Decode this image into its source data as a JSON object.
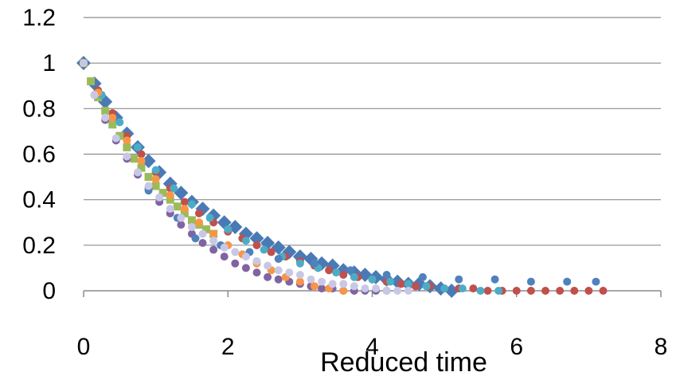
{
  "chart_data": {
    "type": "scatter",
    "title": "",
    "xlabel": "Reduced time",
    "ylabel": "",
    "xlim": [
      0,
      8
    ],
    "ylim": [
      0,
      1.2
    ],
    "xticks": [
      "0",
      "2",
      "4",
      "6",
      "8"
    ],
    "yticks": [
      "0",
      "0.2",
      "0.4",
      "0.6",
      "0.8",
      "1",
      "1.2"
    ],
    "grid": "horizontal",
    "legend": "none",
    "series": [
      {
        "color": "#4a7ab5",
        "marker": "diamond",
        "x": [
          0,
          0.15,
          0.3,
          0.45,
          0.6,
          0.75,
          0.9,
          1.05,
          1.2,
          1.35,
          1.5,
          1.65,
          1.8,
          1.95,
          2.1,
          2.25,
          2.4,
          2.55,
          2.7,
          2.85,
          3.0,
          3.15,
          3.3,
          3.45,
          3.6,
          3.75,
          3.9,
          4.05,
          4.2,
          4.35,
          4.5,
          4.65,
          4.8,
          4.95,
          5.1
        ],
        "y": [
          1.0,
          0.91,
          0.83,
          0.76,
          0.69,
          0.63,
          0.57,
          0.52,
          0.47,
          0.43,
          0.39,
          0.36,
          0.33,
          0.3,
          0.28,
          0.25,
          0.23,
          0.21,
          0.19,
          0.17,
          0.15,
          0.14,
          0.12,
          0.11,
          0.09,
          0.08,
          0.07,
          0.06,
          0.05,
          0.04,
          0.03,
          0.03,
          0.02,
          0.01,
          0.0
        ]
      },
      {
        "color": "#c0504d",
        "marker": "circle",
        "x": [
          0,
          0.2,
          0.4,
          0.6,
          0.8,
          1.0,
          1.2,
          1.4,
          1.6,
          1.8,
          2.0,
          2.2,
          2.4,
          2.6,
          2.8,
          3.0,
          3.2,
          3.4,
          3.6,
          3.8,
          4.0,
          4.2,
          4.4,
          4.6,
          4.8,
          5.0,
          5.2,
          5.4,
          5.6,
          5.8,
          6.0,
          6.2,
          6.4,
          6.6,
          6.8,
          7.0,
          7.2
        ],
        "y": [
          1.0,
          0.88,
          0.78,
          0.68,
          0.6,
          0.52,
          0.45,
          0.39,
          0.34,
          0.3,
          0.26,
          0.23,
          0.2,
          0.17,
          0.15,
          0.13,
          0.11,
          0.09,
          0.07,
          0.06,
          0.05,
          0.04,
          0.03,
          0.02,
          0.02,
          0.01,
          0.01,
          0.01,
          0.0,
          0.0,
          0.0,
          0.0,
          0.0,
          0.0,
          0.0,
          0.0,
          0.0
        ]
      },
      {
        "color": "#9bbb59",
        "marker": "square",
        "x": [
          0,
          0.1,
          0.2,
          0.3,
          0.4,
          0.5,
          0.6,
          0.7,
          0.8,
          0.9,
          1.0,
          1.1,
          1.2,
          1.3,
          1.4,
          1.5,
          1.6,
          1.7,
          1.8
        ],
        "y": [
          1.0,
          0.92,
          0.85,
          0.79,
          0.73,
          0.68,
          0.63,
          0.58,
          0.54,
          0.5,
          0.46,
          0.43,
          0.4,
          0.37,
          0.34,
          0.31,
          0.29,
          0.27,
          0.25
        ]
      },
      {
        "color": "#8064a2",
        "marker": "circle",
        "x": [
          0,
          0.15,
          0.3,
          0.45,
          0.6,
          0.75,
          0.9,
          1.05,
          1.2,
          1.35,
          1.5,
          1.65,
          1.8,
          1.95,
          2.1,
          2.25,
          2.4,
          2.55,
          2.7,
          2.85,
          3.0,
          3.15,
          3.3,
          3.45,
          3.6,
          3.75,
          3.9,
          4.05,
          4.2
        ],
        "y": [
          1.0,
          0.86,
          0.75,
          0.66,
          0.58,
          0.51,
          0.45,
          0.39,
          0.34,
          0.29,
          0.25,
          0.21,
          0.18,
          0.15,
          0.12,
          0.1,
          0.08,
          0.06,
          0.05,
          0.04,
          0.03,
          0.02,
          0.01,
          0.01,
          0.0,
          0.0,
          0.0,
          0.0,
          0.0
        ]
      },
      {
        "color": "#4bacc6",
        "marker": "circle",
        "x": [
          0,
          0.25,
          0.5,
          0.75,
          1.0,
          1.25,
          1.5,
          1.75,
          2.0,
          2.25,
          2.5,
          2.75,
          3.0,
          3.25,
          3.5,
          3.75,
          4.0,
          4.25,
          4.5,
          4.75,
          5.0,
          5.25,
          5.5,
          5.75
        ],
        "y": [
          1.0,
          0.86,
          0.74,
          0.63,
          0.53,
          0.45,
          0.38,
          0.32,
          0.27,
          0.22,
          0.18,
          0.15,
          0.12,
          0.1,
          0.08,
          0.06,
          0.05,
          0.04,
          0.03,
          0.02,
          0.01,
          0.01,
          0.0,
          0.0
        ]
      },
      {
        "color": "#f79646",
        "marker": "circle",
        "x": [
          0,
          0.2,
          0.4,
          0.6,
          0.8,
          1.0,
          1.2,
          1.4,
          1.6,
          1.8,
          2.0,
          2.2,
          2.4,
          2.6,
          2.8,
          3.0,
          3.2,
          3.4,
          3.6
        ],
        "y": [
          1.0,
          0.87,
          0.76,
          0.66,
          0.57,
          0.49,
          0.42,
          0.36,
          0.3,
          0.25,
          0.2,
          0.16,
          0.12,
          0.09,
          0.06,
          0.04,
          0.02,
          0.01,
          0.0
        ]
      },
      {
        "color": "#4f81bd",
        "marker": "circle",
        "x": [
          0.9,
          1.3,
          1.55,
          1.9,
          2.3,
          2.7,
          3.2,
          3.7,
          4.2,
          4.7,
          5.2,
          5.7,
          6.2,
          6.7,
          7.1
        ],
        "y": [
          0.44,
          0.32,
          0.23,
          0.2,
          0.17,
          0.14,
          0.12,
          0.09,
          0.07,
          0.06,
          0.05,
          0.05,
          0.04,
          0.04,
          0.04
        ]
      },
      {
        "color": "#c8c8e6",
        "marker": "circle",
        "x": [
          0,
          0.15,
          0.3,
          0.45,
          0.6,
          0.75,
          0.9,
          1.05,
          1.2,
          1.35,
          1.5,
          1.65,
          1.8,
          1.95,
          2.1,
          2.25,
          2.4,
          2.55,
          2.7,
          2.85,
          3.0,
          3.15,
          3.3,
          3.45,
          3.6,
          3.75,
          3.9,
          4.05,
          4.2,
          4.35,
          4.5
        ],
        "y": [
          1.0,
          0.86,
          0.76,
          0.67,
          0.59,
          0.52,
          0.46,
          0.41,
          0.36,
          0.32,
          0.28,
          0.25,
          0.22,
          0.19,
          0.17,
          0.15,
          0.13,
          0.11,
          0.09,
          0.08,
          0.07,
          0.05,
          0.04,
          0.03,
          0.03,
          0.02,
          0.01,
          0.01,
          0.0,
          0.0,
          0.0
        ]
      }
    ]
  }
}
